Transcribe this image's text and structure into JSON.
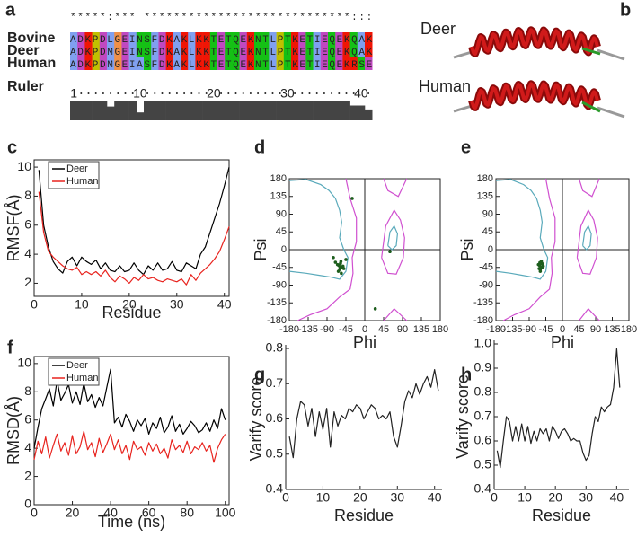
{
  "alignment": {
    "panel": "a",
    "conservation": "*****:*** ****************************:::",
    "rows": [
      {
        "name": "Bovine",
        "sequence": "ADKPDLGEINSFDKAKLKKTETQEKNTLPTKETIEQEKQAK"
      },
      {
        "name": "Deer",
        "sequence": "ADKPDMGEINSFDKAKLKKTETQEKNTLPTKETIEQEKQAK"
      },
      {
        "name": "Human",
        "sequence": "ADKPDMGEIASFDKAKLKKTETQEKNTLPTKETIEQEKRSE"
      }
    ],
    "ruler_label": "Ruler",
    "ruler_ticks": [
      1,
      10,
      20,
      30,
      40
    ],
    "conservation_scores": [
      1,
      1,
      1,
      1,
      1,
      0.7,
      1,
      1,
      1,
      0.4,
      1,
      1,
      1,
      1,
      1,
      1,
      1,
      1,
      1,
      1,
      1,
      1,
      1,
      1,
      1,
      1,
      1,
      1,
      1,
      1,
      1,
      1,
      1,
      1,
      1,
      1,
      1,
      1,
      0.75,
      0.75,
      0.55
    ],
    "bar_color": "#444444",
    "residue_colors": {
      "A": "#80a0f0",
      "I": "#80a0f0",
      "L": "#80a0f0",
      "M": "#80a0f0",
      "F": "#80a0f0",
      "W": "#80a0f0",
      "V": "#80a0f0",
      "K": "#f01505",
      "R": "#f01505",
      "E": "#c048c0",
      "D": "#c048c0",
      "N": "#15c015",
      "Q": "#15c015",
      "S": "#15c015",
      "T": "#15c015",
      "G": "#f09048",
      "P": "#c0c000"
    }
  },
  "structures": {
    "panel": "b",
    "labels": [
      "Deer",
      "Human"
    ]
  },
  "chart_data": [
    {
      "type": "line",
      "panel": "c",
      "xlabel": "Residue",
      "ylabel": "RMSF(Å)",
      "frame": true,
      "legend": "upper left",
      "xlim": [
        0,
        41
      ],
      "ylim": [
        1.1,
        10.5
      ],
      "xticks": [
        0,
        10,
        20,
        30,
        40
      ],
      "yticks": [
        2,
        4,
        6,
        8,
        10
      ],
      "series": [
        {
          "name": "Deer",
          "color": "#000000",
          "x": [
            1,
            2,
            3,
            4,
            5,
            6,
            7,
            8,
            9,
            10,
            11,
            12,
            13,
            14,
            15,
            16,
            17,
            18,
            19,
            20,
            21,
            22,
            23,
            24,
            25,
            26,
            27,
            28,
            29,
            30,
            31,
            32,
            33,
            34,
            35,
            36,
            37,
            38,
            39,
            40,
            41
          ],
          "values": [
            9.8,
            6.0,
            4.5,
            3.5,
            3.0,
            2.7,
            3.5,
            3.8,
            3.2,
            3.8,
            3.5,
            3.3,
            3.6,
            3.0,
            3.4,
            2.9,
            2.8,
            3.2,
            2.8,
            2.9,
            3.4,
            2.9,
            2.6,
            3.2,
            2.9,
            3.4,
            2.9,
            3.0,
            3.5,
            2.9,
            2.8,
            3.4,
            3.2,
            3.0,
            4.0,
            4.5,
            5.5,
            6.5,
            7.5,
            8.7,
            10.0
          ]
        },
        {
          "name": "Human",
          "color": "#e8231e",
          "x": [
            1,
            2,
            3,
            4,
            5,
            6,
            7,
            8,
            9,
            10,
            11,
            12,
            13,
            14,
            15,
            16,
            17,
            18,
            19,
            20,
            21,
            22,
            23,
            24,
            25,
            26,
            27,
            28,
            29,
            30,
            31,
            32,
            33,
            34,
            35,
            36,
            37,
            38,
            39,
            40,
            41
          ],
          "values": [
            8.3,
            5.5,
            4.2,
            3.8,
            3.5,
            3.2,
            3.0,
            2.9,
            3.1,
            2.6,
            2.8,
            2.6,
            2.8,
            2.5,
            2.9,
            2.4,
            2.1,
            2.5,
            2.3,
            2.0,
            2.4,
            2.2,
            2.6,
            2.3,
            2.4,
            2.2,
            2.1,
            2.3,
            2.2,
            2.1,
            2.3,
            1.9,
            2.6,
            2.2,
            2.7,
            3.0,
            3.3,
            3.7,
            4.2,
            5.0,
            5.9
          ]
        }
      ]
    },
    {
      "type": "scatter",
      "panel": "d",
      "xlabel": "Phi",
      "ylabel": "Psi",
      "frame": true,
      "zero_lines": true,
      "color": "#1d5e1d",
      "xlim": [
        -180,
        180
      ],
      "ylim": [
        -180,
        180
      ],
      "xticks": [
        -180,
        -135,
        -90,
        -45,
        0,
        45,
        90,
        135,
        180
      ],
      "yticks": [
        -180,
        -135,
        -90,
        -45,
        0,
        45,
        90,
        135,
        180
      ],
      "x": [
        -62,
        -58,
        -55,
        -60,
        -65,
        -52,
        -57,
        -63,
        -70,
        -50,
        -56,
        -59,
        -75,
        -45,
        -30,
        60,
        25
      ],
      "values": [
        -40,
        -35,
        -45,
        -50,
        -38,
        -42,
        -30,
        -55,
        -32,
        -48,
        -60,
        -44,
        -20,
        -25,
        130,
        -5,
        -150
      ],
      "contours": [
        {
          "color": "#5aaabb",
          "x": [
            -180,
            -140,
            -105,
            -85,
            -70,
            -60,
            -55,
            -60,
            -50,
            -40,
            -45,
            -60,
            -80,
            -110,
            -140,
            -180
          ],
          "values": [
            175,
            178,
            165,
            150,
            130,
            100,
            70,
            30,
            0,
            -20,
            -55,
            -75,
            -70,
            -65,
            -60,
            -55
          ]
        },
        {
          "color": "#d050d0",
          "x": [
            -160,
            -130,
            -90,
            -60,
            -35,
            -28,
            -30,
            -20,
            -20,
            -35,
            -45
          ],
          "values": [
            -180,
            -165,
            -150,
            -120,
            -100,
            -60,
            -20,
            20,
            80,
            130,
            180
          ]
        },
        {
          "color": "#d050d0",
          "x": [
            40,
            55,
            75,
            92,
            95,
            85,
            70,
            50,
            40
          ],
          "values": [
            -20,
            -60,
            -62,
            -20,
            30,
            75,
            100,
            60,
            -20
          ]
        },
        {
          "color": "#5aaabb",
          "x": [
            55,
            65,
            75,
            78,
            70,
            60,
            55
          ],
          "values": [
            10,
            0,
            10,
            40,
            60,
            45,
            10
          ]
        },
        {
          "color": "#d050d0",
          "x": [
            45,
            55,
            80,
            100
          ],
          "values": [
            180,
            150,
            135,
            180
          ]
        },
        {
          "color": "#d050d0",
          "x": [
            45,
            70,
            100
          ],
          "values": [
            -180,
            -150,
            -180
          ]
        }
      ]
    },
    {
      "type": "scatter",
      "panel": "e",
      "xlabel": "Phi",
      "ylabel": "Psi",
      "frame": true,
      "zero_lines": true,
      "color": "#1d5e1d",
      "xlim": [
        -180,
        180
      ],
      "ylim": [
        -180,
        180
      ],
      "xticks": [
        -180,
        -135,
        -90,
        -45,
        0,
        45,
        90,
        135,
        180
      ],
      "yticks": [
        -180,
        -135,
        -90,
        -45,
        0,
        45,
        90,
        135,
        180
      ],
      "x": [
        -62,
        -58,
        -55,
        -60,
        -65,
        -52,
        -57,
        -63,
        -60,
        -54,
        -58,
        -61
      ],
      "values": [
        -40,
        -35,
        -45,
        -50,
        -38,
        -42,
        -30,
        -48,
        -55,
        -36,
        -44,
        -33
      ],
      "contours": [
        {
          "color": "#5aaabb",
          "x": [
            -180,
            -140,
            -105,
            -85,
            -70,
            -60,
            -55,
            -60,
            -50,
            -40,
            -45,
            -60,
            -80,
            -110,
            -140,
            -180
          ],
          "values": [
            175,
            178,
            165,
            150,
            130,
            100,
            70,
            30,
            0,
            -20,
            -55,
            -75,
            -70,
            -65,
            -60,
            -55
          ]
        },
        {
          "color": "#d050d0",
          "x": [
            -160,
            -130,
            -90,
            -60,
            -35,
            -28,
            -30,
            -20,
            -20,
            -35,
            -45
          ],
          "values": [
            -180,
            -165,
            -150,
            -120,
            -100,
            -60,
            -20,
            20,
            80,
            130,
            180
          ]
        },
        {
          "color": "#d050d0",
          "x": [
            40,
            55,
            75,
            92,
            95,
            85,
            70,
            50,
            40
          ],
          "values": [
            -20,
            -60,
            -62,
            -20,
            30,
            75,
            100,
            60,
            -20
          ]
        },
        {
          "color": "#5aaabb",
          "x": [
            55,
            65,
            75,
            78,
            70,
            60,
            55
          ],
          "values": [
            10,
            0,
            10,
            40,
            60,
            45,
            10
          ]
        },
        {
          "color": "#d050d0",
          "x": [
            45,
            55,
            80,
            100
          ],
          "values": [
            180,
            150,
            135,
            180
          ]
        },
        {
          "color": "#d050d0",
          "x": [
            45,
            70,
            100
          ],
          "values": [
            -180,
            -150,
            -180
          ]
        }
      ]
    },
    {
      "type": "line",
      "panel": "f",
      "xlabel": "Time (ns)",
      "ylabel": "RMSD(Å)",
      "frame": true,
      "legend": "upper left",
      "xlim": [
        0,
        102
      ],
      "ylim": [
        0,
        10.5
      ],
      "xticks": [
        0,
        20,
        40,
        60,
        80,
        100
      ],
      "yticks": [
        0,
        2,
        4,
        6,
        8,
        10
      ],
      "series": [
        {
          "name": "Deer",
          "color": "#000000",
          "x": [
            0,
            2,
            4,
            6,
            8,
            10,
            12,
            14,
            16,
            18,
            20,
            22,
            24,
            26,
            28,
            30,
            32,
            34,
            36,
            38,
            40,
            42,
            44,
            46,
            48,
            50,
            52,
            54,
            56,
            58,
            60,
            62,
            64,
            66,
            68,
            70,
            72,
            74,
            76,
            78,
            80,
            82,
            84,
            86,
            88,
            90,
            92,
            94,
            96,
            98,
            100
          ],
          "values": [
            4.0,
            5.5,
            6.8,
            7.5,
            8.2,
            7.0,
            8.8,
            7.4,
            7.9,
            8.5,
            7.2,
            8.0,
            7.1,
            8.6,
            7.3,
            7.8,
            6.9,
            7.6,
            7.0,
            8.3,
            9.6,
            5.8,
            6.2,
            5.5,
            6.4,
            5.9,
            5.2,
            6.0,
            5.6,
            6.1,
            5.0,
            5.8,
            5.4,
            6.2,
            5.1,
            5.5,
            6.3,
            5.2,
            5.7,
            5.0,
            5.4,
            5.9,
            5.6,
            5.1,
            5.3,
            5.8,
            5.2,
            6.0,
            5.4,
            6.8,
            6.0
          ]
        },
        {
          "name": "Human",
          "color": "#e8231e",
          "x": [
            0,
            2,
            4,
            6,
            8,
            10,
            12,
            14,
            16,
            18,
            20,
            22,
            24,
            26,
            28,
            30,
            32,
            34,
            36,
            38,
            40,
            42,
            44,
            46,
            48,
            50,
            52,
            54,
            56,
            58,
            60,
            62,
            64,
            66,
            68,
            70,
            72,
            74,
            76,
            78,
            80,
            82,
            84,
            86,
            88,
            90,
            92,
            94,
            96,
            98,
            100
          ],
          "values": [
            3.2,
            4.5,
            3.6,
            4.8,
            3.3,
            4.2,
            5.0,
            3.8,
            4.4,
            3.5,
            4.9,
            3.6,
            4.1,
            5.2,
            3.9,
            4.4,
            3.4,
            4.7,
            3.7,
            4.3,
            5.0,
            3.9,
            4.6,
            3.6,
            4.2,
            3.2,
            4.5,
            3.9,
            4.1,
            3.5,
            4.4,
            3.8,
            4.3,
            3.6,
            4.0,
            3.3,
            4.6,
            3.9,
            4.2,
            3.7,
            4.5,
            3.6,
            4.1,
            3.9,
            4.4,
            3.8,
            4.2,
            3.0,
            4.0,
            4.6,
            5.0
          ]
        }
      ]
    },
    {
      "type": "line",
      "panel": "g",
      "xlabel": "Residue",
      "ylabel": "Varify score",
      "frame": false,
      "xlim": [
        0,
        42
      ],
      "ylim": [
        0.4,
        0.8
      ],
      "xticks": [
        0,
        10,
        20,
        30,
        40
      ],
      "yticks": [
        0.4,
        0.5,
        0.6,
        0.7,
        0.8
      ],
      "series": [
        {
          "color": "#222222",
          "x": [
            1,
            2,
            3,
            4,
            5,
            6,
            7,
            8,
            9,
            10,
            11,
            12,
            13,
            14,
            15,
            16,
            17,
            18,
            19,
            20,
            21,
            22,
            23,
            24,
            25,
            26,
            27,
            28,
            29,
            30,
            31,
            32,
            33,
            34,
            35,
            36,
            37,
            38,
            39,
            40,
            41
          ],
          "values": [
            0.55,
            0.49,
            0.6,
            0.65,
            0.64,
            0.58,
            0.63,
            0.55,
            0.62,
            0.57,
            0.63,
            0.52,
            0.62,
            0.58,
            0.61,
            0.6,
            0.63,
            0.62,
            0.64,
            0.63,
            0.6,
            0.62,
            0.64,
            0.63,
            0.6,
            0.61,
            0.6,
            0.62,
            0.55,
            0.52,
            0.58,
            0.65,
            0.68,
            0.66,
            0.7,
            0.67,
            0.7,
            0.72,
            0.69,
            0.74,
            0.68
          ]
        }
      ]
    },
    {
      "type": "line",
      "panel": "h",
      "xlabel": "Residue",
      "ylabel": "Varify score",
      "frame": false,
      "xlim": [
        0,
        44
      ],
      "ylim": [
        0.4,
        1.0
      ],
      "xticks": [
        0,
        10,
        20,
        30,
        40
      ],
      "yticks": [
        0.4,
        0.5,
        0.6,
        0.7,
        0.8,
        0.9,
        {
          "value": 1,
          "label": "1.0"
        }
      ],
      "series": [
        {
          "color": "#222222",
          "x": [
            1,
            2,
            3,
            4,
            5,
            6,
            7,
            8,
            9,
            10,
            11,
            12,
            13,
            14,
            15,
            16,
            17,
            18,
            19,
            20,
            21,
            22,
            23,
            24,
            25,
            26,
            27,
            28,
            29,
            30,
            31,
            32,
            33,
            34,
            35,
            36,
            37,
            38,
            39,
            40,
            41
          ],
          "values": [
            0.56,
            0.49,
            0.6,
            0.7,
            0.68,
            0.6,
            0.66,
            0.6,
            0.67,
            0.6,
            0.66,
            0.59,
            0.64,
            0.6,
            0.65,
            0.63,
            0.65,
            0.6,
            0.66,
            0.64,
            0.61,
            0.64,
            0.65,
            0.63,
            0.6,
            0.61,
            0.6,
            0.6,
            0.55,
            0.52,
            0.54,
            0.63,
            0.7,
            0.68,
            0.74,
            0.72,
            0.74,
            0.75,
            0.82,
            0.98,
            0.82
          ]
        }
      ]
    }
  ]
}
